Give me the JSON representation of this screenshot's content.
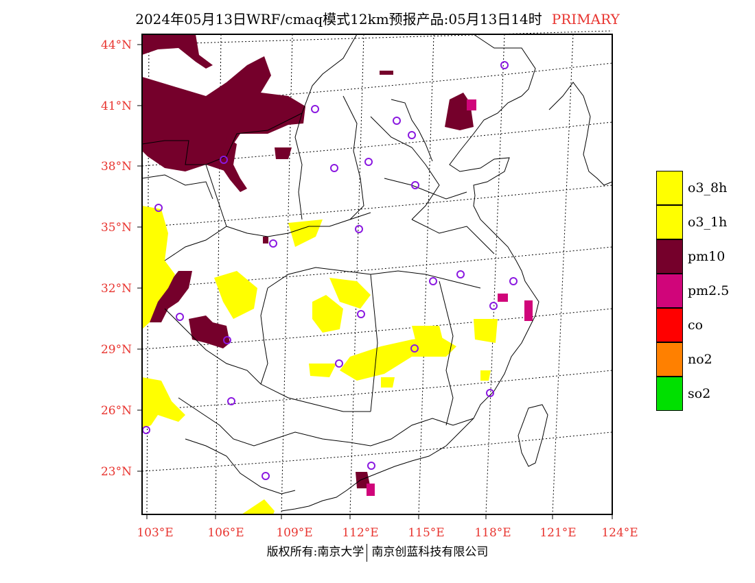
{
  "header": {
    "title": "2024年05月13日WRF/cmaq模式12km预报产品:05月13日14时",
    "tag": "PRIMARY"
  },
  "map": {
    "lat_labels": [
      "44°N",
      "41°N",
      "38°N",
      "35°N",
      "32°N",
      "29°N",
      "26°N",
      "23°N"
    ],
    "lon_labels": [
      "103°E",
      "106°E",
      "109°E",
      "112°E",
      "115°E",
      "118°E",
      "121°E",
      "124°E"
    ],
    "colors": {
      "pm10": "#75002b",
      "pm25": "#d0057a",
      "o3": "#ffff00",
      "station": "#8a18e0",
      "label": "#e8342f"
    }
  },
  "legend": {
    "items": [
      {
        "label": "o3_8h",
        "color": "#ffff00"
      },
      {
        "label": "o3_1h",
        "color": "#ffff00"
      },
      {
        "label": "pm10",
        "color": "#75002b"
      },
      {
        "label": "pm2.5",
        "color": "#d0057a"
      },
      {
        "label": "co",
        "color": "#ff0000"
      },
      {
        "label": "no2",
        "color": "#ff8000"
      },
      {
        "label": "so2",
        "color": "#00e000"
      }
    ]
  },
  "footer": {
    "left": "版权所有:南京大学",
    "right": "南京创蓝科技有限公司"
  }
}
